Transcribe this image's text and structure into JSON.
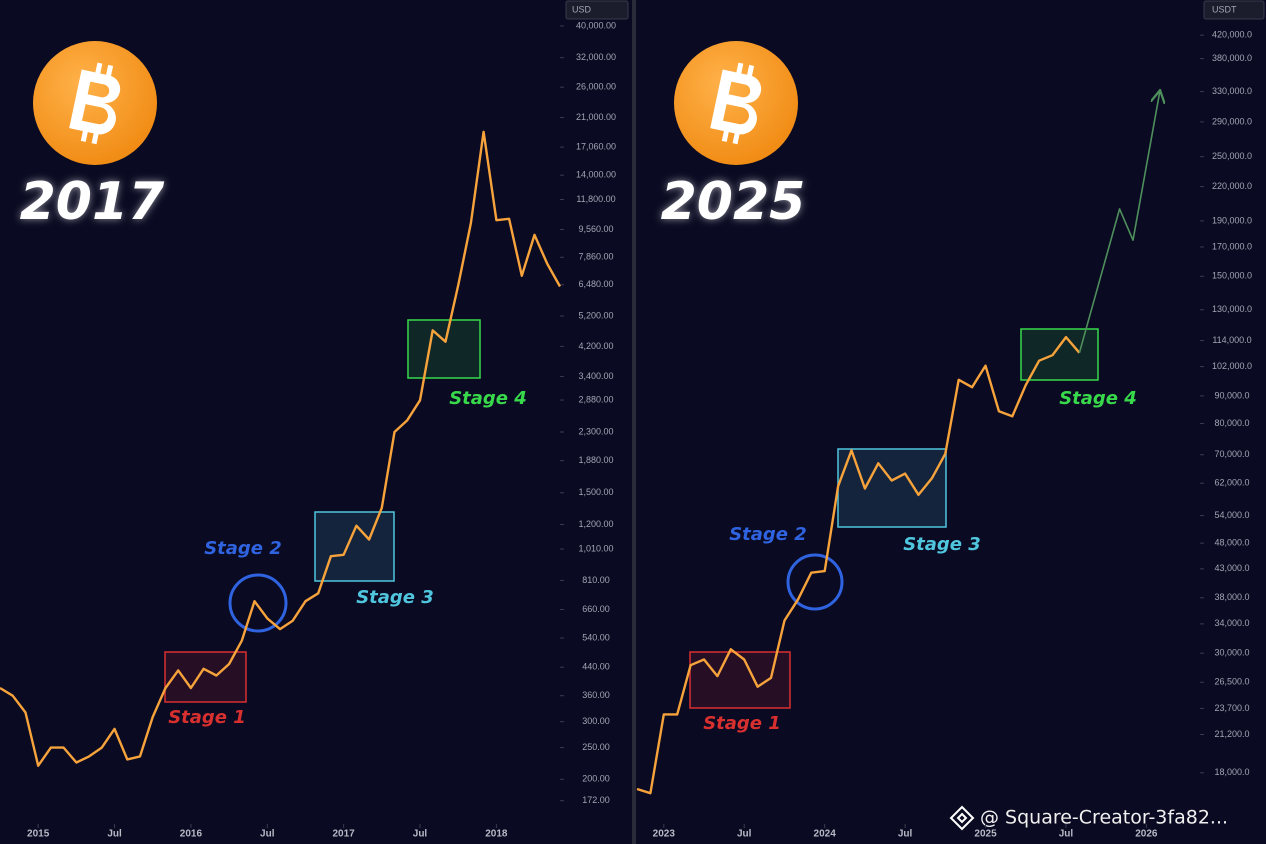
{
  "chart_data": [
    {
      "type": "line",
      "title": "2017",
      "price_unit": "USD",
      "log_scale": true,
      "x": [
        "2014-10",
        "2014-11",
        "2014-12",
        "2015-01",
        "2015-02",
        "2015-03",
        "2015-04",
        "2015-05",
        "2015-06",
        "2015-07",
        "2015-08",
        "2015-09",
        "2015-10",
        "2015-11",
        "2015-12",
        "2016-01",
        "2016-02",
        "2016-03",
        "2016-04",
        "2016-05",
        "2016-06",
        "2016-07",
        "2016-08",
        "2016-09",
        "2016-10",
        "2016-11",
        "2016-12",
        "2017-01",
        "2017-02",
        "2017-03",
        "2017-04",
        "2017-05",
        "2017-06",
        "2017-07",
        "2017-08",
        "2017-09",
        "2017-10",
        "2017-11",
        "2017-12",
        "2018-01",
        "2018-02",
        "2018-03",
        "2018-04",
        "2018-05",
        "2018-06"
      ],
      "series": [
        {
          "color": "#f7a33c",
          "values": [
            380,
            360,
            320,
            220,
            250,
            250,
            225,
            235,
            250,
            285,
            230,
            235,
            310,
            380,
            430,
            380,
            435,
            415,
            450,
            530,
            700,
            620,
            575,
            610,
            700,
            740,
            960,
            970,
            1190,
            1080,
            1350,
            2300,
            2500,
            2875,
            4700,
            4340,
            6450,
            10000,
            19000,
            10200,
            10300,
            6900,
            9200,
            7500,
            6400
          ]
        }
      ],
      "xlim": [
        "2014-10",
        "2018-06"
      ],
      "xticks": [
        {
          "value": "2015-01",
          "label": "2015"
        },
        {
          "value": "2015-07",
          "label": "Jul"
        },
        {
          "value": "2016-01",
          "label": "2016"
        },
        {
          "value": "2016-07",
          "label": "Jul"
        },
        {
          "value": "2017-01",
          "label": "2017"
        },
        {
          "value": "2017-07",
          "label": "Jul"
        },
        {
          "value": "2018-01",
          "label": "2018"
        }
      ],
      "ylim": [
        140,
        48000
      ],
      "yticks": [
        {
          "value": 172,
          "label": "172.00"
        },
        {
          "value": 200,
          "label": "200.00"
        },
        {
          "value": 250,
          "label": "250.00"
        },
        {
          "value": 300,
          "label": "300.00"
        },
        {
          "value": 360,
          "label": "360.00"
        },
        {
          "value": 440,
          "label": "440.00"
        },
        {
          "value": 540,
          "label": "540.00"
        },
        {
          "value": 660,
          "label": "660.00"
        },
        {
          "value": 810,
          "label": "810.00"
        },
        {
          "value": 1010,
          "label": "1,010.00"
        },
        {
          "value": 1200,
          "label": "1,200.00"
        },
        {
          "value": 1500,
          "label": "1,500.00"
        },
        {
          "value": 1880,
          "label": "1,880.00"
        },
        {
          "value": 2300,
          "label": "2,300.00"
        },
        {
          "value": 2880,
          "label": "2,880.00"
        },
        {
          "value": 3400,
          "label": "3,400.00"
        },
        {
          "value": 4200,
          "label": "4,200.00"
        },
        {
          "value": 5200,
          "label": "5,200.00"
        },
        {
          "value": 6480,
          "label": "6,480.00"
        },
        {
          "value": 7860,
          "label": "7,860.00"
        },
        {
          "value": 9560,
          "label": "9,560.00"
        },
        {
          "value": 11800,
          "label": "11,800.00"
        },
        {
          "value": 14000,
          "label": "14,000.00"
        },
        {
          "value": 17060,
          "label": "17,060.00"
        },
        {
          "value": 21000,
          "label": "21,000.00"
        },
        {
          "value": 26000,
          "label": "26,000.00"
        },
        {
          "value": 32000,
          "label": "32,000.00"
        },
        {
          "value": 40000,
          "label": "40,000.00"
        }
      ],
      "annotations": [
        {
          "text": "Stage 1",
          "color": "#d8302f"
        },
        {
          "text": "Stage 2",
          "color": "#2f63e0"
        },
        {
          "text": "Stage 3",
          "color": "#4fc6de"
        },
        {
          "text": "Stage 4",
          "color": "#38d94a"
        }
      ]
    },
    {
      "type": "line",
      "title": "2025",
      "price_unit": "USDT",
      "log_scale": true,
      "x": [
        "2022-11",
        "2022-12",
        "2023-01",
        "2023-02",
        "2023-03",
        "2023-04",
        "2023-05",
        "2023-06",
        "2023-07",
        "2023-08",
        "2023-09",
        "2023-10",
        "2023-11",
        "2023-12",
        "2024-01",
        "2024-02",
        "2024-03",
        "2024-04",
        "2024-05",
        "2024-06",
        "2024-07",
        "2024-08",
        "2024-09",
        "2024-10",
        "2024-11",
        "2024-12",
        "2025-01",
        "2025-02",
        "2025-03",
        "2025-04",
        "2025-05",
        "2025-06",
        "2025-07",
        "2025-08",
        "2025-11",
        "2025-12",
        "2026-02"
      ],
      "series": [
        {
          "color": "#f7a33c",
          "values": [
            16800,
            16500,
            23100,
            23100,
            28500,
            29200,
            27200,
            30500,
            29200,
            26000,
            27000,
            34500,
            37700,
            42300,
            42600,
            61200,
            71300,
            60600,
            67500,
            62700,
            64600,
            59000,
            63300,
            70300,
            96400,
            93400,
            102400,
            84300,
            82500,
            94200,
            104600,
            107100,
            115700,
            108200,
            null,
            null,
            null
          ]
        },
        {
          "color": "#4e8f5c",
          "values": [
            null,
            null,
            null,
            null,
            null,
            null,
            null,
            null,
            null,
            null,
            null,
            null,
            null,
            null,
            null,
            null,
            null,
            null,
            null,
            null,
            null,
            null,
            null,
            null,
            null,
            null,
            null,
            null,
            null,
            null,
            null,
            null,
            null,
            108200,
            200000,
            175000,
            330000
          ]
        }
      ],
      "xlim": [
        "2022-11",
        "2026-05"
      ],
      "xticks": [
        {
          "value": "2023-01",
          "label": "2023"
        },
        {
          "value": "2023-07",
          "label": "Jul"
        },
        {
          "value": "2024-01",
          "label": "2024"
        },
        {
          "value": "2024-07",
          "label": "Jul"
        },
        {
          "value": "2025-01",
          "label": "2025"
        },
        {
          "value": "2025-07",
          "label": "Jul"
        },
        {
          "value": "2026-01",
          "label": "2026"
        }
      ],
      "ylim": [
        14100,
        488000
      ],
      "yticks": [
        {
          "value": 18000,
          "label": "18,000.0"
        },
        {
          "value": 21200,
          "label": "21,200.0"
        },
        {
          "value": 23700,
          "label": "23,700.0"
        },
        {
          "value": 26500,
          "label": "26,500.0"
        },
        {
          "value": 30000,
          "label": "30,000.0"
        },
        {
          "value": 34000,
          "label": "34,000.0"
        },
        {
          "value": 38000,
          "label": "38,000.0"
        },
        {
          "value": 43000,
          "label": "43,000.0"
        },
        {
          "value": 48000,
          "label": "48,000.0"
        },
        {
          "value": 54000,
          "label": "54,000.0"
        },
        {
          "value": 62000,
          "label": "62,000.0"
        },
        {
          "value": 70000,
          "label": "70,000.0"
        },
        {
          "value": 80000,
          "label": "80,000.0"
        },
        {
          "value": 90000,
          "label": "90,000.0"
        },
        {
          "value": 102000,
          "label": "102,000.0"
        },
        {
          "value": 114000,
          "label": "114,000.0"
        },
        {
          "value": 130000,
          "label": "130,000.0"
        },
        {
          "value": 150000,
          "label": "150,000.0"
        },
        {
          "value": 170000,
          "label": "170,000.0"
        },
        {
          "value": 190000,
          "label": "190,000.0"
        },
        {
          "value": 220000,
          "label": "220,000.0"
        },
        {
          "value": 250000,
          "label": "250,000.0"
        },
        {
          "value": 290000,
          "label": "290,000.0"
        },
        {
          "value": 330000,
          "label": "330,000.0"
        },
        {
          "value": 380000,
          "label": "380,000.0"
        },
        {
          "value": 420000,
          "label": "420,000.0"
        }
      ],
      "annotations": [
        {
          "text": "Stage 1",
          "color": "#d8302f"
        },
        {
          "text": "Stage 2",
          "color": "#2f63e0"
        },
        {
          "text": "Stage 3",
          "color": "#4fc6de"
        },
        {
          "text": "Stage 4",
          "color": "#38d94a"
        }
      ]
    }
  ],
  "watermark": "@ Square-Creator-3fa82..."
}
